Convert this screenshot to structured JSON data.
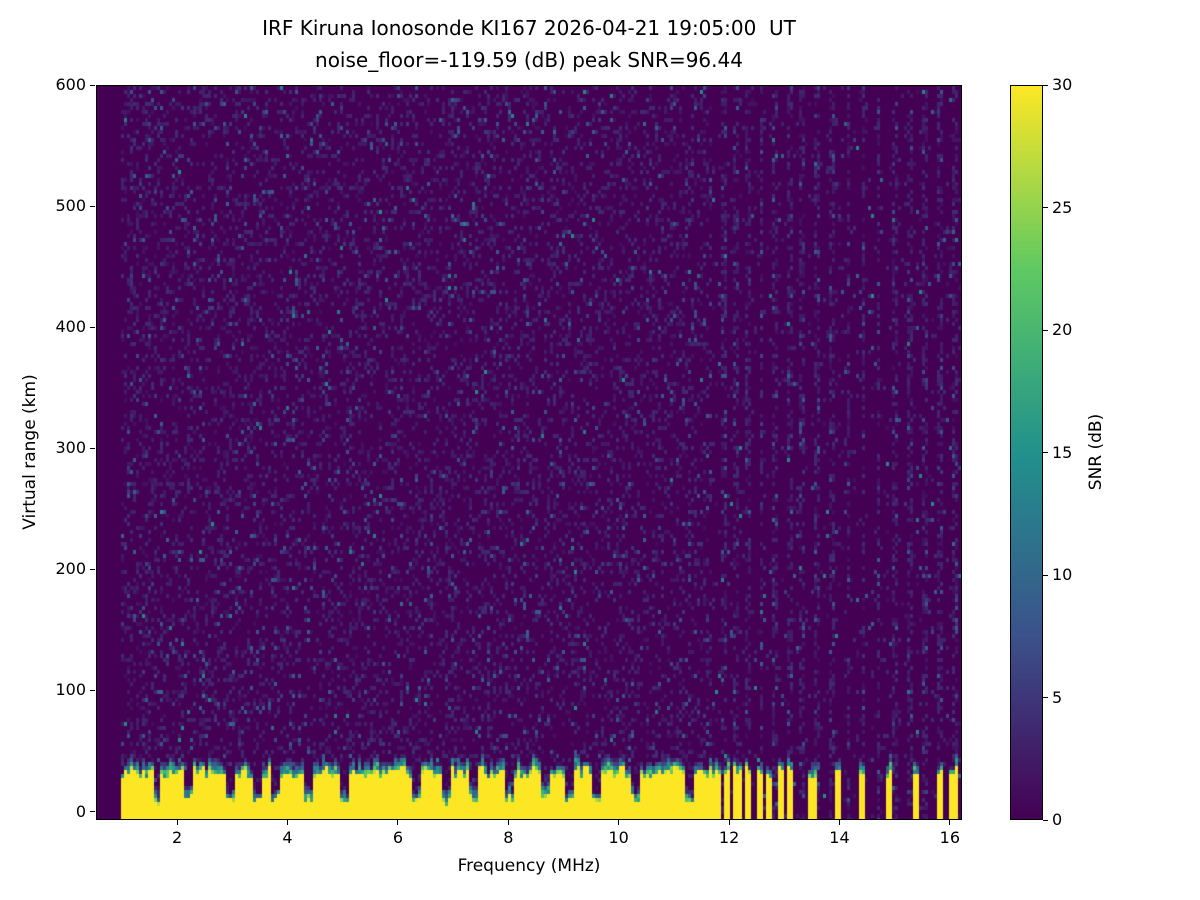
{
  "chart_data": {
    "type": "heatmap",
    "title": "IRF Kiruna Ionosonde KI167 2026-04-21 19:05:00  UT",
    "subtitle": "noise_floor=-119.59 (dB) peak SNR=96.44",
    "station": "IRF Kiruna Ionosonde KI167",
    "timestamp_ut": "2026-04-21 19:05:00",
    "noise_floor_db": -119.59,
    "peak_snr_db": 96.44,
    "xlabel": "Frequency (MHz)",
    "ylabel": "Virtual range (km)",
    "xlim": [
      0.53,
      16.22
    ],
    "ylim": [
      -7,
      600
    ],
    "xticks": [
      2,
      4,
      6,
      8,
      10,
      12,
      14,
      16
    ],
    "yticks": [
      0,
      100,
      200,
      300,
      400,
      500,
      600
    ],
    "colorbar": {
      "label": "SNR (dB)",
      "range": [
        0,
        30
      ],
      "ticks": [
        0,
        5,
        10,
        15,
        20,
        25,
        30
      ],
      "colormap": "viridis",
      "stops": [
        "#440154",
        "#3b528b",
        "#21918c",
        "#5ec962",
        "#fde725"
      ]
    },
    "features": {
      "background_snr_db": 0,
      "noise_speckle_snr_db": [
        1,
        12
      ],
      "data_start_freq_mhz": 0.95,
      "ground_echo_band": {
        "freq_mhz": [
          0.95,
          11.7
        ],
        "top_km_range": [
          26,
          36
        ],
        "snr_db": 30
      },
      "band_transition_km": [
        5,
        15
      ],
      "band_gap_freqs_mhz": [
        1.62,
        2.2,
        2.95,
        3.42,
        3.78,
        4.38,
        5.05,
        6.32,
        6.9,
        7.35,
        8.02,
        8.65,
        9.12,
        9.6,
        10.3,
        11.3
      ],
      "pulsed_band_start_mhz": 11.7,
      "pulse_freqs_mhz": [
        11.78,
        11.97,
        12.16,
        12.35,
        12.55,
        12.74,
        12.94,
        13.13,
        13.52,
        13.98,
        14.44,
        14.93,
        15.4,
        15.86,
        16.08
      ],
      "rfi_stripe_freqs_mhz": [
        11.9,
        12.12,
        12.35,
        12.6,
        12.85,
        13.1,
        13.35,
        13.62,
        13.9,
        14.18,
        14.45,
        14.72,
        15.0,
        15.28,
        15.55,
        15.82,
        16.1
      ],
      "weak_stripe_freqs_mhz": [
        1.45,
        1.7
      ],
      "noise_seed": 7
    }
  }
}
